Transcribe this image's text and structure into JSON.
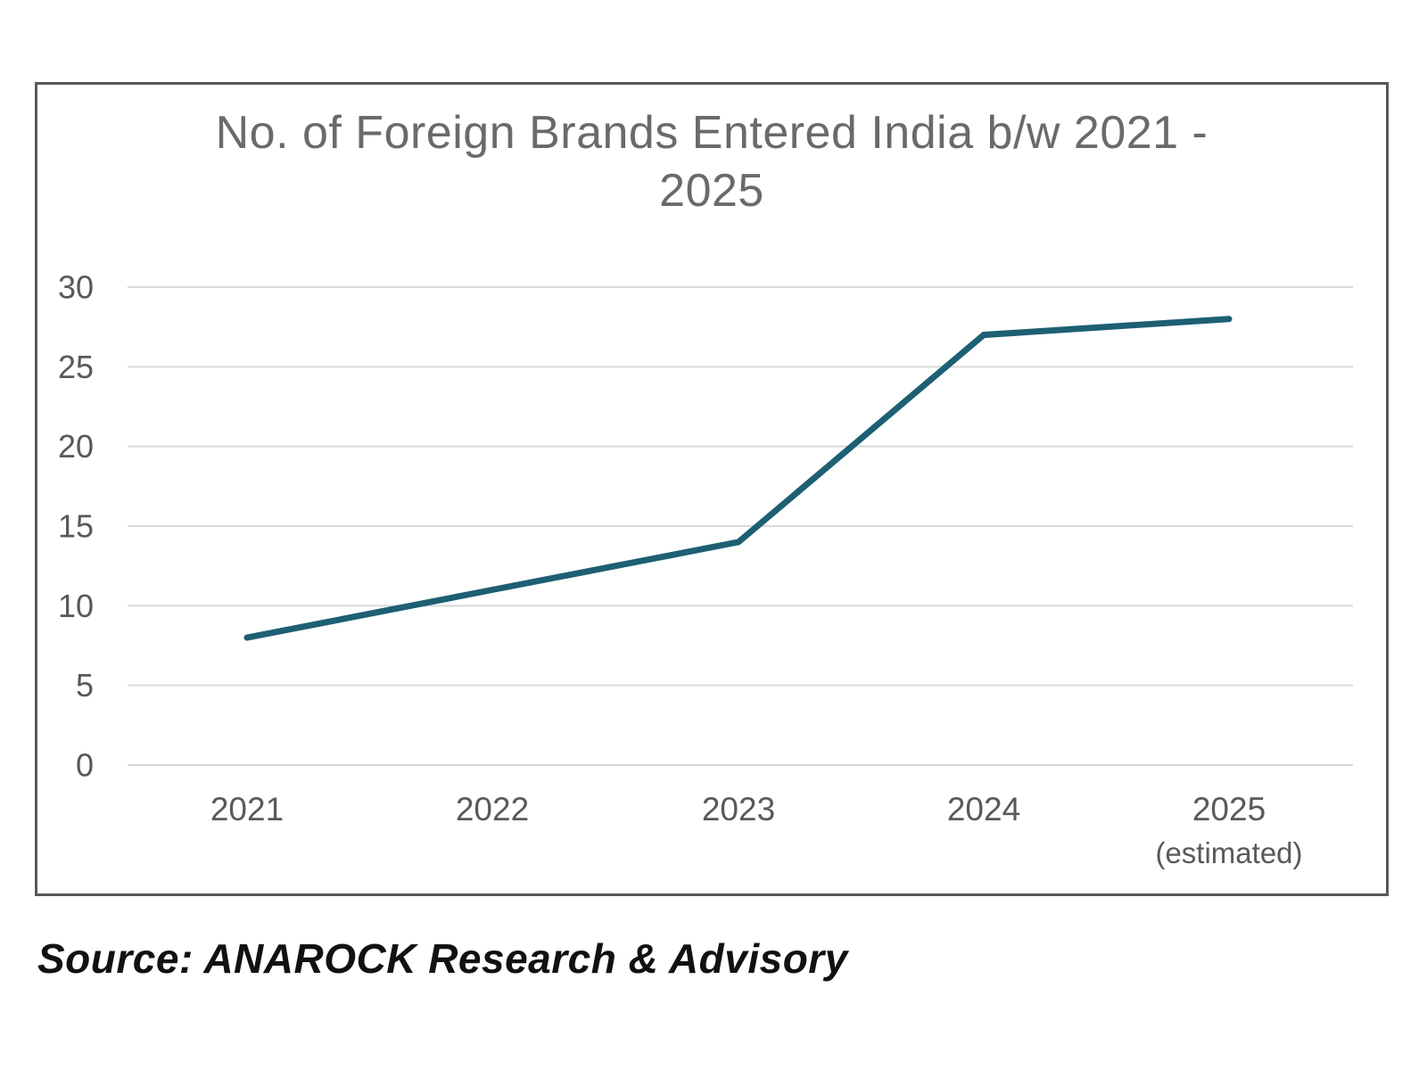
{
  "page": {
    "source_text": "Source: ANAROCK Research & Advisory"
  },
  "chart": {
    "title_lines": [
      "No. of Foreign Brands Entered India b/w 2021 -",
      "2025"
    ],
    "colors": {
      "line": "#1d5f73",
      "grid": "#d9d9d9",
      "border": "#58595b",
      "title_text": "#6a6a6a",
      "axis_text": "#595959"
    }
  },
  "chart_data": {
    "type": "line",
    "title": "No. of Foreign Brands Entered India b/w 2021 - 2025",
    "categories": [
      "2021",
      "2022",
      "2023",
      "2024",
      "2025"
    ],
    "x_sublabels": [
      "",
      "",
      "",
      "",
      "(estimated)"
    ],
    "values": [
      8,
      11,
      14,
      27,
      28
    ],
    "xlabel": "",
    "ylabel": "",
    "ylim": [
      0,
      30
    ],
    "yticks": [
      0,
      5,
      10,
      15,
      20,
      25,
      30
    ],
    "grid": "horizontal",
    "legend": "none"
  }
}
